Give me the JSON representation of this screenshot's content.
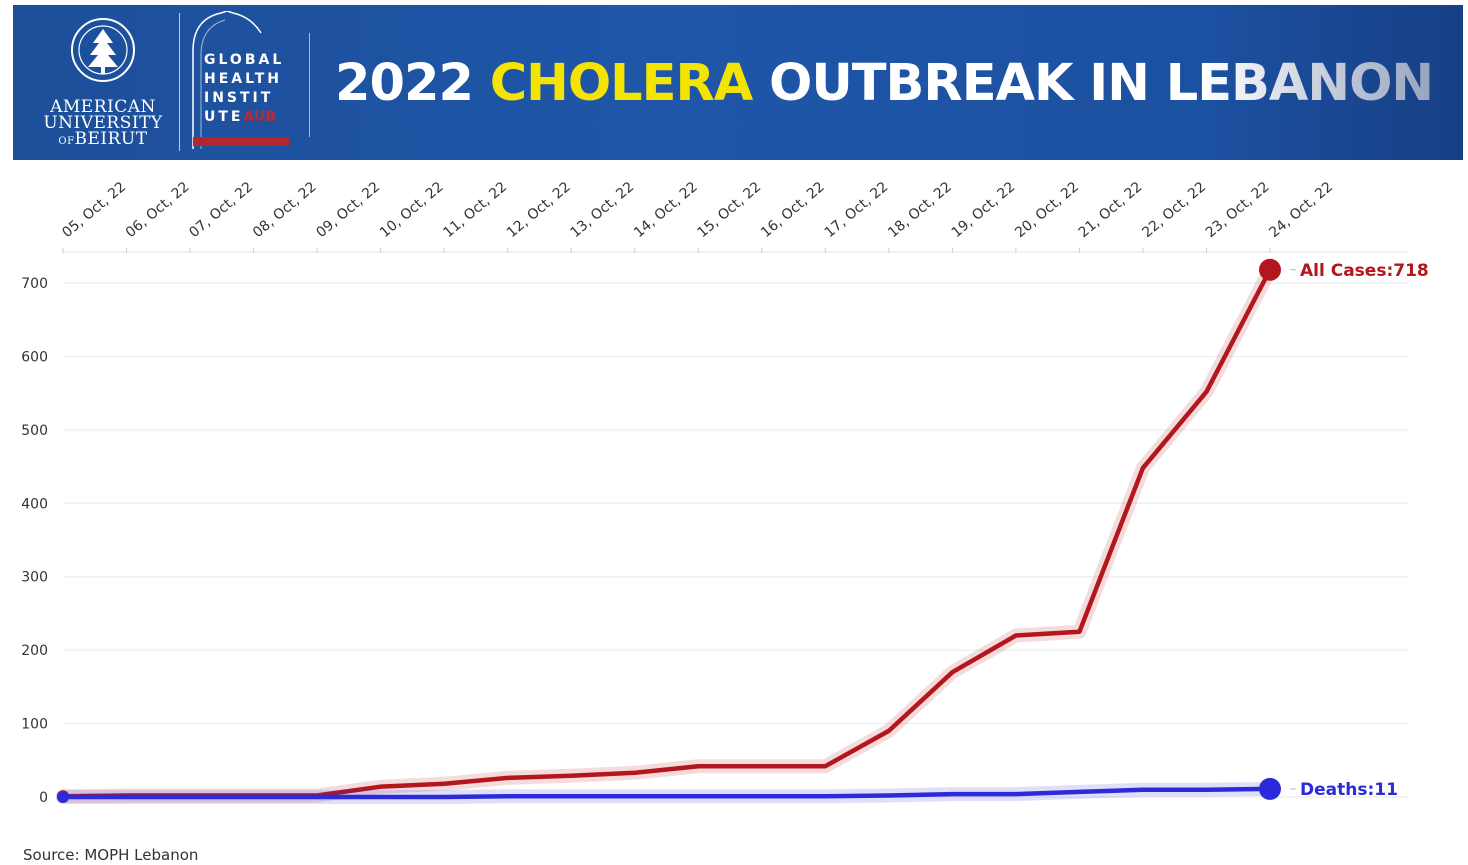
{
  "header": {
    "aub_line1": "AMERICAN",
    "aub_line2": "UNIVERSITY",
    "aub_of": "OF",
    "aub_line3": "BEIRUT",
    "ghi_line1": "GLOBAL",
    "ghi_line2": "HEALTH",
    "ghi_line3": "INSTIT",
    "ghi_line4a": "UTE",
    "ghi_line4b": "AUB",
    "title_part1": "2022 ",
    "title_highlight": "CHOLERA",
    "title_part2": " OUTBREAK IN LEBANON",
    "title_highlight_color": "#f4e400",
    "banner_color": "#1f56a8"
  },
  "source": "Source: MOPH Lebanon",
  "chart_data": {
    "type": "line",
    "categories": [
      "05, Oct, 22",
      "06, Oct, 22",
      "07, Oct, 22",
      "08, Oct, 22",
      "09, Oct, 22",
      "10, Oct, 22",
      "11, Oct, 22",
      "12, Oct, 22",
      "13, Oct, 22",
      "14, Oct, 22",
      "15, Oct, 22",
      "16, Oct, 22",
      "17, Oct, 22",
      "18, Oct, 22",
      "19, Oct, 22",
      "20, Oct, 22",
      "21, Oct, 22",
      "22, Oct, 22",
      "23, Oct, 22",
      "24, Oct, 22"
    ],
    "series": [
      {
        "name": "All Cases",
        "label": "All Cases:718",
        "color": "#b3161c",
        "values": [
          1,
          2,
          2,
          2,
          2,
          14,
          18,
          26,
          29,
          33,
          42,
          42,
          42,
          90,
          170,
          220,
          225,
          448,
          552,
          718
        ]
      },
      {
        "name": "Deaths",
        "label": "Deaths:11",
        "color": "#2b2bd9",
        "values": [
          0,
          0,
          0,
          0,
          0,
          0,
          0,
          1,
          1,
          1,
          1,
          1,
          1,
          2,
          4,
          4,
          7,
          10,
          10,
          11
        ]
      }
    ],
    "yticks": [
      0,
      100,
      200,
      300,
      400,
      500,
      600,
      700
    ],
    "ylim": [
      0,
      730
    ],
    "xlabel": "",
    "ylabel": "",
    "grid": true,
    "x_axis_position": "top"
  }
}
